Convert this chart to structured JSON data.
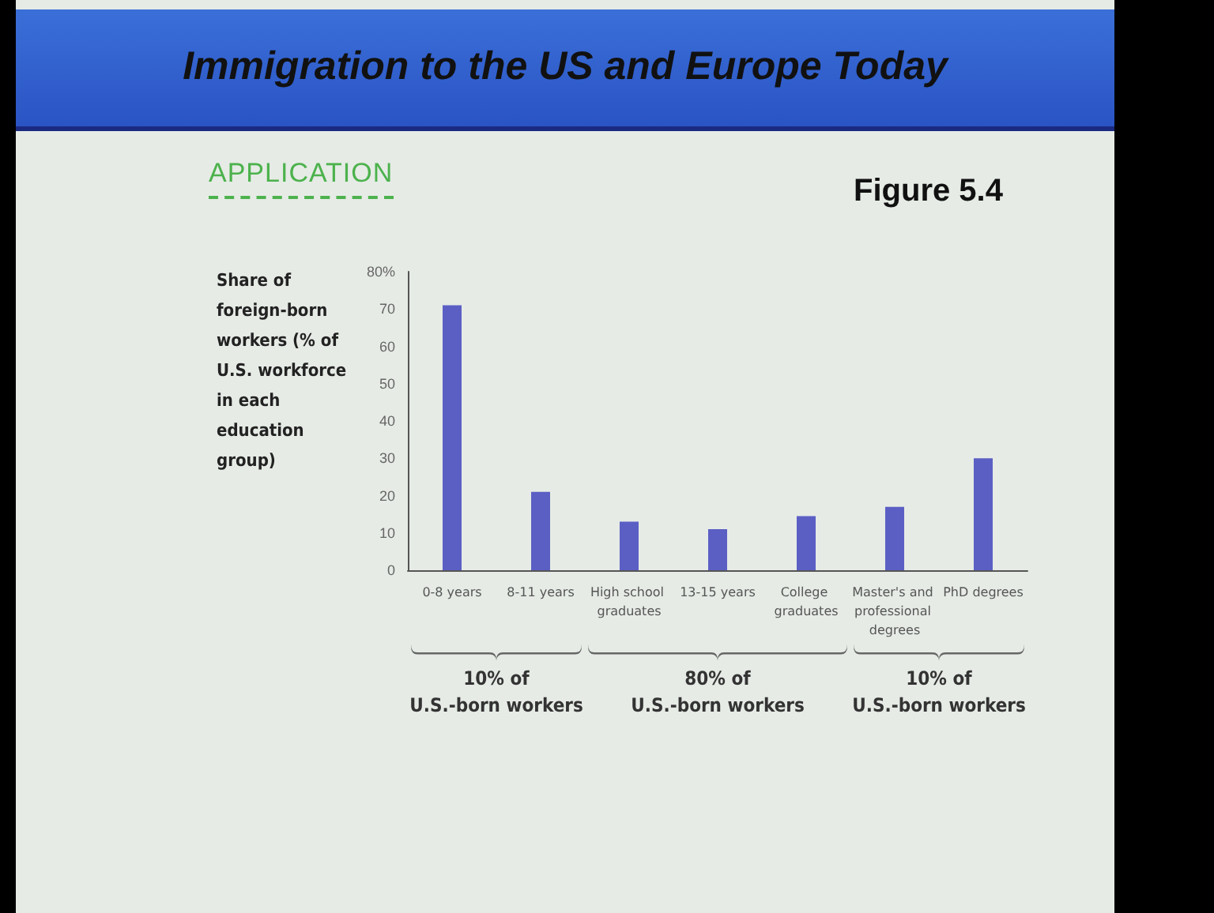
{
  "chart_data": {
    "type": "bar",
    "title": "Immigration to the US and Europe Today",
    "subtitle": "Figure 5.4",
    "ylabel": "Share of foreign-born workers (% of U.S. workforce in each education group)",
    "categories": [
      "0-8 years",
      "8-11 years",
      "High school graduates",
      "13-15 years",
      "College graduates",
      "Master's and professional degrees",
      "PhD degrees"
    ],
    "values": [
      71,
      21,
      13,
      11,
      14.5,
      17,
      30
    ],
    "color": "#5b5fc4",
    "ylim": [
      0,
      80
    ],
    "yticks": [
      0,
      10,
      20,
      30,
      40,
      50,
      60,
      70,
      {
        "value": 80,
        "label": "80%"
      }
    ],
    "grid": false,
    "annotations": [
      "APPLICATION",
      "10% of\nU.S.-born workers",
      "80% of\nU.S.-born workers",
      "10% of\nU.S.-born workers"
    ]
  }
}
